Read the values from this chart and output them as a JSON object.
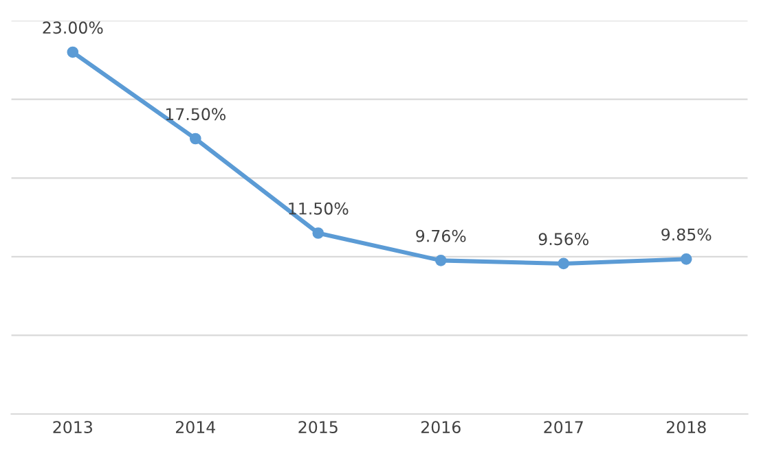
{
  "chart_data": {
    "type": "line",
    "categories": [
      "2013",
      "2014",
      "2015",
      "2016",
      "2017",
      "2018"
    ],
    "series": [
      {
        "color": "#5b9bd5",
        "values": [
          23.0,
          17.5,
          11.5,
          9.76,
          9.56,
          9.85
        ],
        "value_labels": [
          "23.00%",
          "17.50%",
          "11.50%",
          "9.76%",
          "9.56%",
          "9.85%"
        ]
      }
    ],
    "ylim": [
      0,
      25
    ],
    "yticks": [
      {
        "value": 0,
        "label": null
      },
      {
        "value": 5,
        "label": null
      },
      {
        "value": 10,
        "label": null
      },
      {
        "value": 15,
        "label": null
      },
      {
        "value": 20,
        "label": null
      },
      {
        "value": 25,
        "label": null
      }
    ],
    "tick_labels": "x",
    "grid": "y",
    "marker": "circle",
    "line_style": "solid"
  }
}
